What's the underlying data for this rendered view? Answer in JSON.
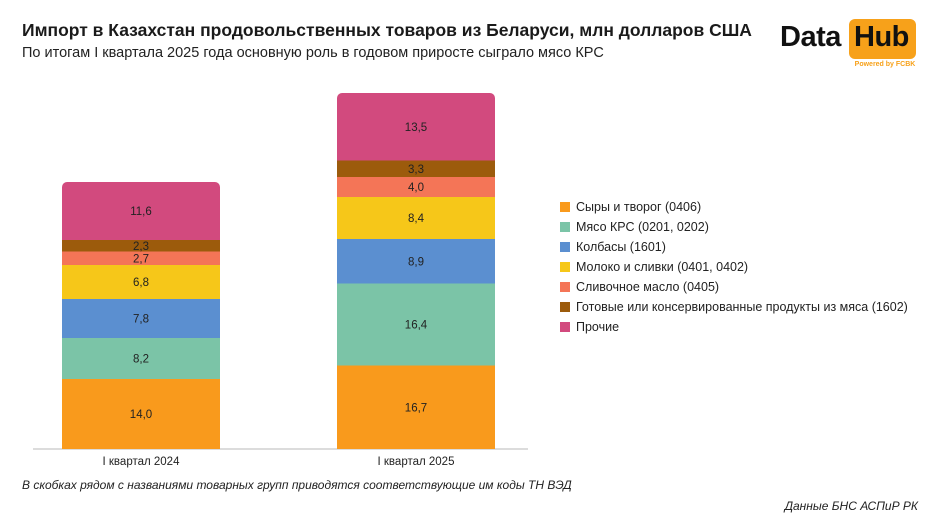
{
  "header": {
    "title": "Импорт в Казахстан продовольственных товаров из Беларуси, млн долларов США",
    "subtitle": "По итогам I квартала 2025 года основную роль в годовом приросте сыграло мясо КРС"
  },
  "logo": {
    "word1": "Data",
    "word2": "Hub",
    "tagline": "Powered by FCBK",
    "accent": "#f7a11a"
  },
  "chart_data": {
    "type": "bar",
    "stacked": true,
    "categories": [
      "I квартал 2024",
      "I квартал 2025"
    ],
    "series": [
      {
        "name": "Сыры и творог (0406)",
        "color": "#f99a1c",
        "values": [
          14.0,
          16.7
        ],
        "labels": [
          "14,0",
          "16,7"
        ]
      },
      {
        "name": "Мясо КРС (0201, 0202)",
        "color": "#7bc4a7",
        "values": [
          8.2,
          16.4
        ],
        "labels": [
          "8,2",
          "16,4"
        ]
      },
      {
        "name": "Колбасы (1601)",
        "color": "#5b8fd0",
        "values": [
          7.8,
          8.9
        ],
        "labels": [
          "7,8",
          "8,9"
        ]
      },
      {
        "name": "Молоко и сливки (0401, 0402)",
        "color": "#f6c719",
        "values": [
          6.8,
          8.4
        ],
        "labels": [
          "6,8",
          "8,4"
        ]
      },
      {
        "name": "Сливочное масло (0405)",
        "color": "#f47557",
        "values": [
          2.7,
          4.0
        ],
        "labels": [
          "2,7",
          "4,0"
        ]
      },
      {
        "name": "Готовые или консервированные продукты из мяса (1602)",
        "color": "#9c5b0c",
        "values": [
          2.3,
          3.3
        ],
        "labels": [
          "2,3",
          "3,3"
        ]
      },
      {
        "name": "Прочие",
        "color": "#d24a7e",
        "values": [
          11.6,
          13.5
        ],
        "labels": [
          "11,6",
          "13,5"
        ]
      }
    ],
    "legend_position": "right",
    "grid": false
  },
  "footer": {
    "note": "В скобках рядом с названиями товарных групп приводятся соответствующие им коды ТН ВЭД",
    "source": "Данные БНС АСПиР РК"
  }
}
